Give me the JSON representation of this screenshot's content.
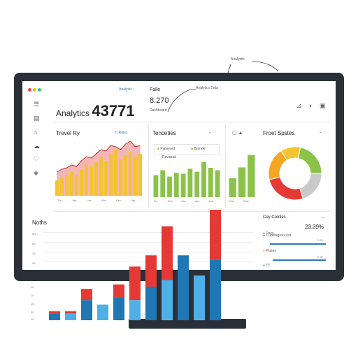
{
  "annotations": {
    "top_note": "Analystic",
    "mid_note": "Analytics Data"
  },
  "header": {
    "title_label": "Analytics",
    "title_number": "43771",
    "top_link": "Analysis",
    "top_link_icon": "chevron-right-icon",
    "kpi_label": "Falle",
    "kpi_value": "8.270",
    "kpi_sub": "Dashboard"
  },
  "window_dots": [
    "#e74c3c",
    "#f1c40f",
    "#2ecc71"
  ],
  "toolbar_icons": [
    "leaf-icon",
    "image-icon"
  ],
  "sidebar_icons": [
    "list-icon",
    "inbox-icon",
    "home-icon",
    "cloud-icon",
    "heart-icon",
    "tag-icon"
  ],
  "panels": {
    "left": {
      "title": "Trevel Ry",
      "link": "Rales"
    },
    "middle": {
      "title": "Tenceties",
      "tab_a": "Fypsered",
      "tab_b": "Brande",
      "sub": "Ravapad"
    },
    "right": {
      "title": "Froet Spstes"
    },
    "bottom": {
      "title": "Noths"
    },
    "legend": {
      "title": "Cey Contles",
      "items": [
        {
          "label": "Tney",
          "value": "23.39%",
          "color": "#2aa7d9"
        },
        {
          "label": "Cupritagrors lod",
          "value": "",
          "color": "#e53935"
        },
        {
          "label": "",
          "value": "2.50",
          "color": "#9e9e9e"
        },
        {
          "label": "Prates",
          "value": "",
          "color": "#f5a623"
        },
        {
          "label": "TT",
          "value": "2.50",
          "color": "#2aa7d9"
        }
      ]
    }
  },
  "chart_data": [
    {
      "type": "bar",
      "categories": [
        "1",
        "2",
        "3",
        "4",
        "5",
        "6",
        "7",
        "8",
        "9",
        "10",
        "11",
        "12",
        "13",
        "14",
        "15",
        "16",
        "17",
        "18"
      ],
      "values": [
        22,
        26,
        30,
        34,
        30,
        38,
        45,
        42,
        48,
        55,
        50,
        60,
        66,
        52,
        58,
        63,
        56,
        60
      ],
      "area_values": [
        34,
        38,
        40,
        44,
        42,
        50,
        56,
        54,
        60,
        66,
        64,
        72,
        70,
        66,
        74,
        78,
        70,
        72
      ],
      "tick_labels": [
        "Thr",
        "Jan",
        "Loe",
        "Avs",
        "Fau",
        "Jay"
      ],
      "ylim": [
        0,
        80
      ],
      "colors": {
        "bars": "#f4c430",
        "area": "#f2b6b6",
        "area_line": "#b4323b"
      }
    },
    {
      "type": "bar",
      "categories": [
        "1",
        "2",
        "3",
        "4",
        "5",
        "6",
        "7",
        "8",
        "9",
        "10"
      ],
      "values": [
        45,
        55,
        42,
        50,
        48,
        58,
        52,
        72,
        60,
        55
      ],
      "tick_labels": [
        "Tre",
        "Dec",
        "Ale",
        "Avs",
        "Ave"
      ],
      "ylim": [
        0,
        80
      ],
      "colors": {
        "bars": "#8bc34a"
      }
    },
    {
      "type": "bar",
      "categories": [
        "1",
        "2",
        "3"
      ],
      "values": [
        35,
        55,
        78
      ],
      "tick_labels": [
        "Feb",
        "Rom"
      ],
      "ylim": [
        0,
        80
      ],
      "colors": {
        "bars": "#8bc34a"
      }
    },
    {
      "type": "pie",
      "labels": [
        "Green",
        "Gray",
        "Red",
        "Orange",
        "Yellow"
      ],
      "values": [
        22,
        20,
        26,
        20,
        12
      ],
      "colors": [
        "#8bc34a",
        "#c9c9c9",
        "#e53935",
        "#f5a623",
        "#f4c430"
      ],
      "donut": true
    },
    {
      "type": "bar",
      "y_ticks": [
        "5O",
        "50",
        "30",
        "30",
        "10",
        "10",
        "15",
        "35",
        "10"
      ],
      "series": [
        {
          "name": "",
          "values": [
            6,
            6,
            18,
            14,
            20,
            18,
            30,
            36,
            58,
            40,
            54
          ]
        },
        {
          "name": "",
          "values": [
            2,
            2,
            10,
            0,
            12,
            0,
            0,
            0,
            0,
            0,
            0
          ]
        }
      ],
      "upper_values": [
        0,
        0,
        0,
        0,
        0,
        30,
        28,
        48,
        0,
        0,
        70
      ],
      "colors": {
        "blue": "#1f77b4",
        "light": "#4fb0e8",
        "red": "#e53935"
      }
    }
  ]
}
